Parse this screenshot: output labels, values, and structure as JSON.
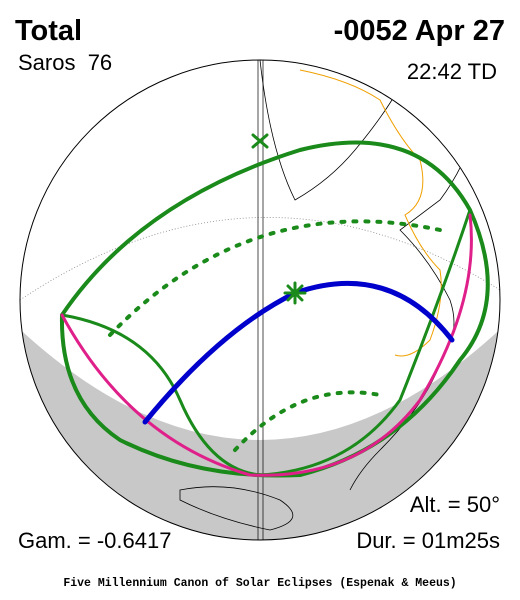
{
  "header": {
    "type": "Total",
    "saros": "Saros  76",
    "date": "-0052 Apr 27",
    "time": "22:42 TD"
  },
  "footer": {
    "altitude": "Alt. = 50°",
    "gamma": "Gam. = -0.6417",
    "duration": "Dur. = 01m25s",
    "credit": "Five Millennium Canon of Solar Eclipses (Espenak & Meeus)"
  }
}
